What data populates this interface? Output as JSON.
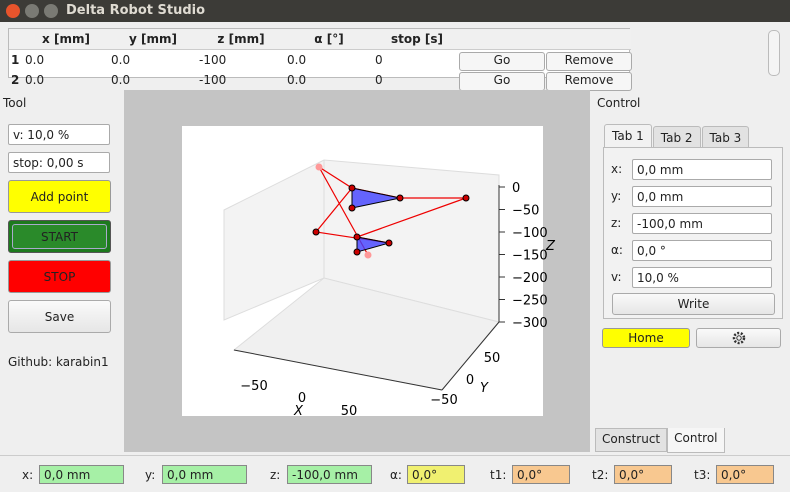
{
  "window": {
    "title": "Delta Robot Studio"
  },
  "table": {
    "headers": [
      "x [mm]",
      "y [mm]",
      "z [mm]",
      "α [°]",
      "stop [s]"
    ],
    "rows": [
      {
        "index": "1",
        "cells": [
          "0.0",
          "0.0",
          "-100",
          "0.0",
          "0"
        ],
        "go": "Go",
        "remove": "Remove"
      },
      {
        "index": "2",
        "cells": [
          "0.0",
          "0.0",
          "-100",
          "0.0",
          "0"
        ],
        "go": "Go",
        "remove": "Remove"
      }
    ]
  },
  "tool": {
    "title": "Tool",
    "speed": "v: 10,0 %",
    "stop_time": "stop: 0,00 s",
    "add_point": "Add point",
    "start": "START",
    "stop": "STOP",
    "save": "Save",
    "github": "Github: karabin1"
  },
  "plot": {
    "z_ticks": [
      "0",
      "−50",
      "−100",
      "−150",
      "−200",
      "−250",
      "−300"
    ],
    "z_label": "Z",
    "x_ticks": [
      "−50",
      "0",
      "50"
    ],
    "x_label": "X",
    "y_ticks": [
      "50",
      "0",
      "−50"
    ],
    "y_label": "Y"
  },
  "control": {
    "title": "Control",
    "tabs": [
      "Tab 1",
      "Tab 2",
      "Tab 3"
    ],
    "fields": [
      {
        "label": "x:",
        "value": "0,0 mm"
      },
      {
        "label": "y:",
        "value": "0,0 mm"
      },
      {
        "label": "z:",
        "value": "-100,0 mm"
      },
      {
        "label": "α:",
        "value": "0,0 °"
      },
      {
        "label": "v:",
        "value": "10,0 %"
      }
    ],
    "write": "Write",
    "home": "Home"
  },
  "bottom_tabs": [
    "Construct",
    "Control"
  ],
  "status": [
    {
      "label": "x:",
      "value": "0,0 mm",
      "color": "#a6f0a6"
    },
    {
      "label": "y:",
      "value": "0,0 mm",
      "color": "#a6f0a6"
    },
    {
      "label": "z:",
      "value": "-100,0 mm",
      "color": "#a6f0a6"
    },
    {
      "label": "α:",
      "value": "0,0°",
      "color": "#f0f070"
    },
    {
      "label": "t1:",
      "value": "0,0°",
      "color": "#f8c890"
    },
    {
      "label": "t2:",
      "value": "0,0°",
      "color": "#f8c890"
    },
    {
      "label": "t3:",
      "value": "0,0°",
      "color": "#f8c890"
    }
  ]
}
